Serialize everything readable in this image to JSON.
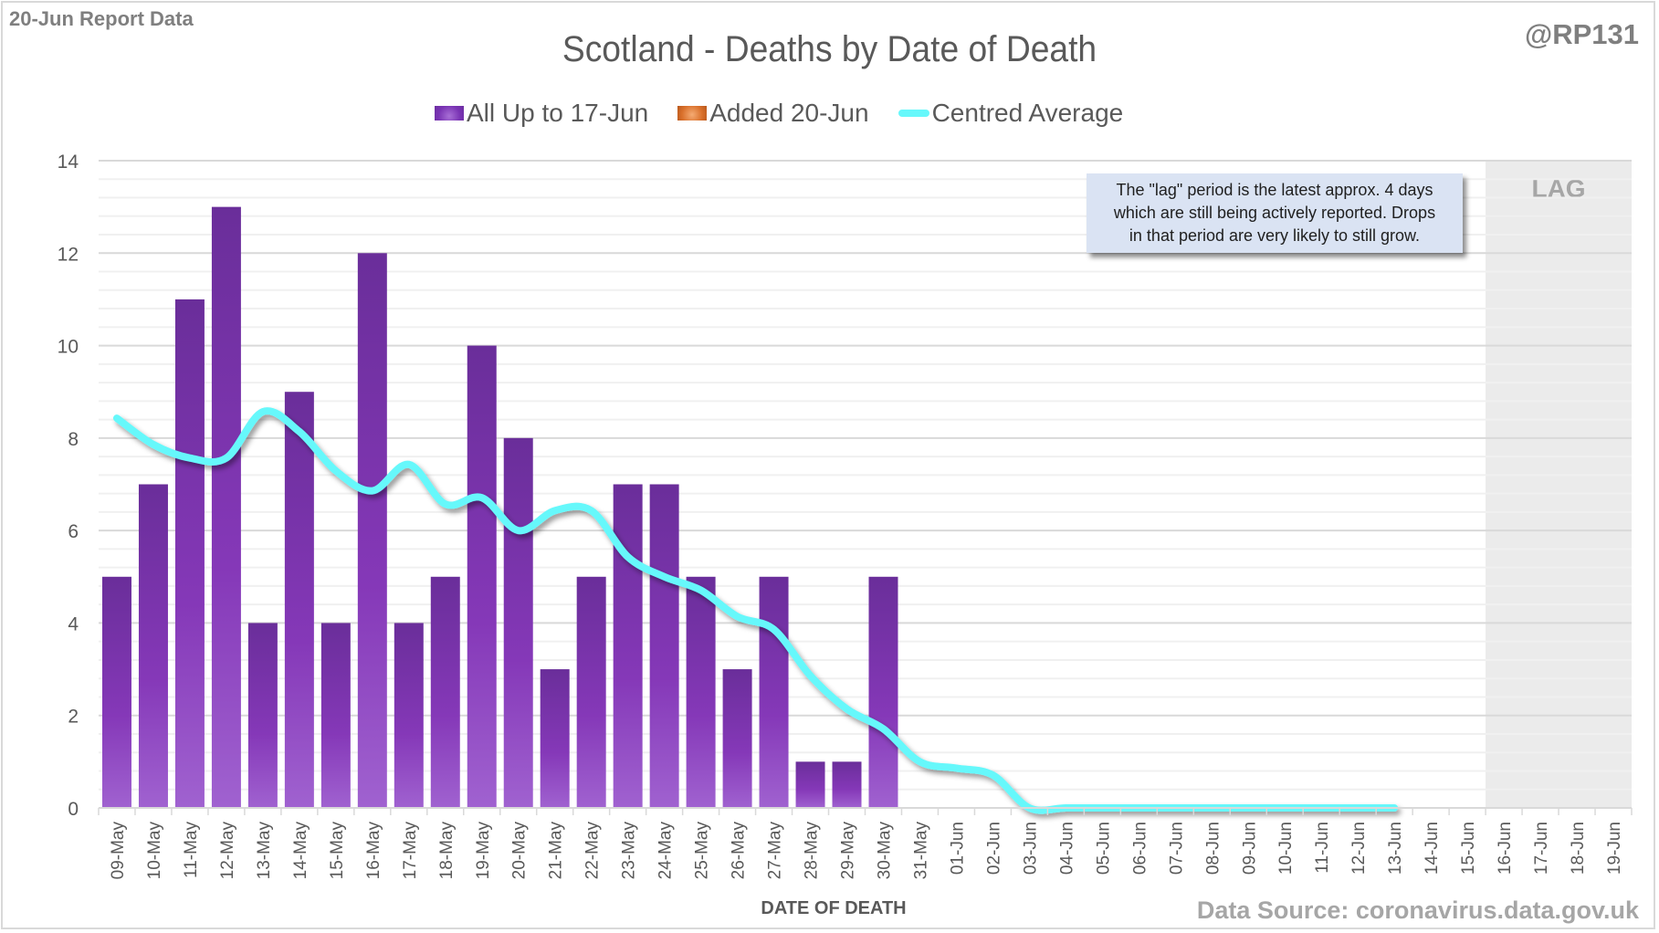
{
  "header": {
    "report_label": "20-Jun Report Data",
    "author_handle": "@RP131",
    "source_label": "Data Source: coronavirus.data.gov.uk"
  },
  "annotation": {
    "lines": [
      "The \"lag\" period is the latest approx. 4 days",
      "which are still being actively reported.  Drops",
      "in that period are very likely to still grow."
    ],
    "lag_label": "LAG"
  },
  "colors": {
    "bar_top": "#6a2e9a",
    "bar_mid": "#8538b8",
    "bar_bottom": "#a062d0",
    "added": "#d9702b",
    "average": "#66f8fb",
    "lag_shade": "#ebebeb",
    "gridline_major": "#d9d9d9",
    "gridline_minor": "#f0f0f0",
    "annotation_fill": "#dae3f3"
  },
  "chart_data": {
    "type": "bar",
    "title": "Scotland - Deaths by Date of Death",
    "xlabel": "DATE OF DEATH",
    "ylabel": "",
    "ylim": [
      0,
      14
    ],
    "y_major_ticks": [
      0,
      2,
      4,
      6,
      8,
      10,
      12,
      14
    ],
    "y_minor_step": 0.4,
    "grid": true,
    "legend_position": "top-center",
    "categories": [
      "09-May",
      "10-May",
      "11-May",
      "12-May",
      "13-May",
      "14-May",
      "15-May",
      "16-May",
      "17-May",
      "18-May",
      "19-May",
      "20-May",
      "21-May",
      "22-May",
      "23-May",
      "24-May",
      "25-May",
      "26-May",
      "27-May",
      "28-May",
      "29-May",
      "30-May",
      "31-May",
      "01-Jun",
      "02-Jun",
      "03-Jun",
      "04-Jun",
      "05-Jun",
      "06-Jun",
      "07-Jun",
      "08-Jun",
      "09-Jun",
      "10-Jun",
      "11-Jun",
      "12-Jun",
      "13-Jun",
      "14-Jun",
      "15-Jun",
      "16-Jun",
      "17-Jun",
      "18-Jun",
      "19-Jun"
    ],
    "lag_categories": [
      "16-Jun",
      "17-Jun",
      "18-Jun",
      "19-Jun"
    ],
    "series": [
      {
        "name": "All Up to 17-Jun",
        "type": "bar",
        "values": [
          5,
          7,
          11,
          13,
          4,
          9,
          4,
          12,
          4,
          5,
          10,
          8,
          3,
          5,
          7,
          7,
          5,
          3,
          5,
          1,
          1,
          5,
          0,
          0,
          0,
          0,
          0,
          0,
          0,
          0,
          0,
          0,
          0,
          0,
          0,
          0,
          0,
          0,
          0,
          0,
          0,
          0
        ]
      },
      {
        "name": "Added 20-Jun",
        "type": "bar-stacked",
        "values": [
          0,
          0,
          0,
          0,
          0,
          0,
          0,
          0,
          0,
          0,
          0,
          0,
          0,
          0,
          0,
          0,
          0,
          0,
          0,
          0,
          0,
          0,
          0,
          0,
          0,
          0,
          0,
          0,
          0,
          0,
          0,
          0,
          0,
          0,
          0,
          0,
          0,
          0,
          0,
          0,
          0,
          0
        ]
      },
      {
        "name": "Centred Average",
        "type": "line",
        "values": [
          8.43,
          7.86,
          7.57,
          7.57,
          8.57,
          8.14,
          7.29,
          6.86,
          7.43,
          6.57,
          6.71,
          6.0,
          6.43,
          6.43,
          5.43,
          5.0,
          4.71,
          4.14,
          3.86,
          2.86,
          2.14,
          1.71,
          1.0,
          0.86,
          0.71,
          0,
          0,
          0,
          0,
          0,
          0,
          0,
          0,
          0,
          0,
          0,
          null,
          null,
          null,
          null,
          null,
          null
        ]
      }
    ]
  }
}
